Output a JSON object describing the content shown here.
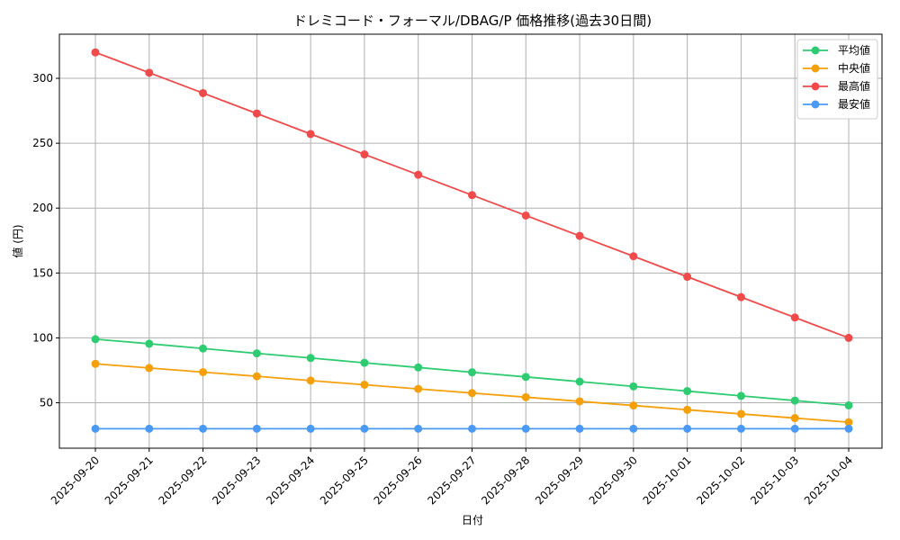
{
  "chart_data": {
    "type": "line",
    "title": "ドレミコード・フォーマル/DBAG/P 価格推移(過去30日間)",
    "xlabel": "日付",
    "ylabel": "値 (円)",
    "categories": [
      "2025-09-20",
      "2025-09-21",
      "2025-09-22",
      "2025-09-23",
      "2025-09-24",
      "2025-09-25",
      "2025-09-26",
      "2025-09-27",
      "2025-09-28",
      "2025-09-29",
      "2025-09-30",
      "2025-10-01",
      "2025-10-02",
      "2025-10-03",
      "2025-10-04"
    ],
    "ylim": [
      15,
      334
    ],
    "yticks": [
      "50",
      "100",
      "150",
      "200",
      "250",
      "300"
    ],
    "grid": true,
    "legend_position": "top-right",
    "series": [
      {
        "name": "平均値",
        "color": "#2ecc71",
        "values": [
          99,
          95.5,
          91.8,
          88.1,
          84.5,
          80.8,
          77.2,
          73.5,
          69.9,
          66.3,
          62.6,
          59,
          55.3,
          51.7,
          48
        ]
      },
      {
        "name": "中央値",
        "color": "#f5a00a",
        "values": [
          80,
          76.8,
          73.6,
          70.4,
          67.1,
          63.9,
          60.7,
          57.5,
          54.3,
          51.1,
          47.9,
          44.6,
          41.4,
          38.2,
          35
        ]
      },
      {
        "name": "最高値",
        "color": "#f04a4a",
        "values": [
          320,
          304.3,
          288.6,
          272.9,
          257.1,
          241.4,
          225.7,
          210,
          194.3,
          178.6,
          162.9,
          147.1,
          131.4,
          115.7,
          100
        ]
      },
      {
        "name": "最安値",
        "color": "#4a9af5",
        "values": [
          30,
          30,
          30,
          30,
          30,
          30,
          30,
          30,
          30,
          30,
          30,
          30,
          30,
          30,
          30
        ]
      }
    ]
  }
}
